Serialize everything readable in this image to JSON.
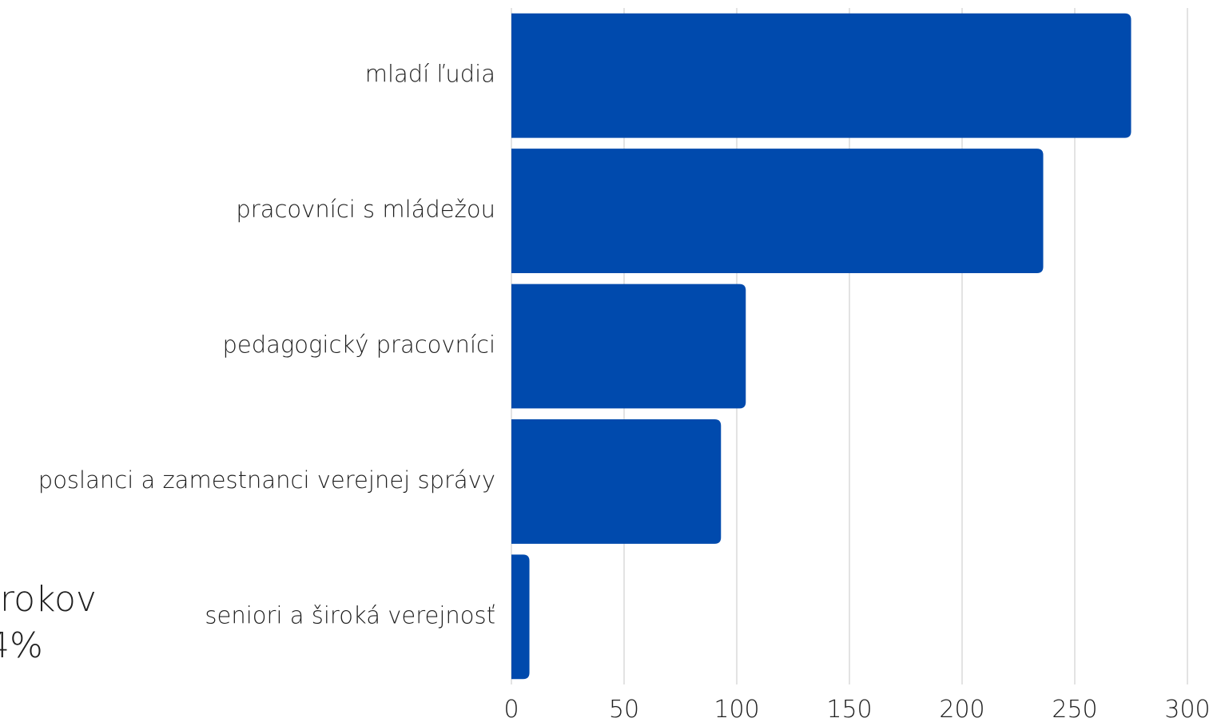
{
  "colors": {
    "bar": "#004aad",
    "grid": "#d0d0d0",
    "text": "#1f1f1f",
    "background": "#ffffff"
  },
  "side_text": {
    "line1": "rokov",
    "line2": "4%"
  },
  "chart_data": {
    "type": "bar",
    "orientation": "horizontal",
    "title": "",
    "xlabel": "",
    "ylabel": "",
    "categories": [
      "mladí ľudia",
      "pracovníci s mládežou",
      "pedagogický pracovníci",
      "poslanci a zamestnanci verejnej správy",
      "seniori a široká verejnosť"
    ],
    "values": [
      275,
      236,
      104,
      93,
      8
    ],
    "xlim": [
      0,
      300
    ],
    "xticks": [
      "0",
      "50",
      "100",
      "150",
      "200",
      "250",
      "300"
    ],
    "grid": true,
    "legend": "none"
  }
}
